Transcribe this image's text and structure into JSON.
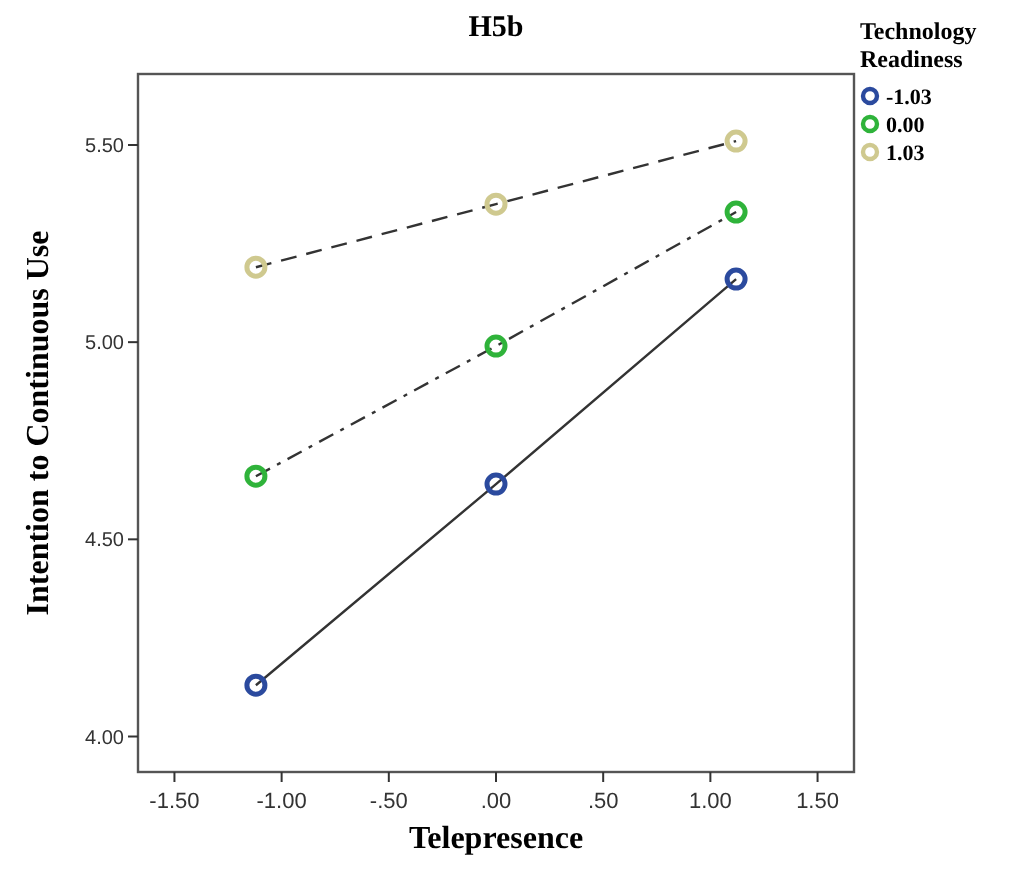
{
  "chart_data": {
    "type": "line",
    "title": "H5b",
    "xlabel": "Telepresence",
    "ylabel": "Intention to Continuous Use",
    "legend_title": "Technology Readiness",
    "legend": "top right",
    "marker": "circle",
    "x": [
      -1.12,
      0,
      1.12
    ],
    "xlim": [
      -1.67,
      1.67
    ],
    "xticks": [
      {
        "value": -1.5,
        "label": "-1.50"
      },
      {
        "value": -1,
        "label": "-1.00"
      },
      {
        "value": -0.5,
        "label": "-.50"
      },
      {
        "value": 0,
        "label": ".00"
      },
      {
        "value": 0.5,
        "label": ".50"
      },
      {
        "value": 1,
        "label": "1.00"
      },
      {
        "value": 1.5,
        "label": "1.50"
      }
    ],
    "ylim": [
      3.91,
      5.68
    ],
    "yticks": [
      {
        "value": 4,
        "label": "4.00"
      },
      {
        "value": 4.5,
        "label": "4.50"
      },
      {
        "value": 5,
        "label": "5.00"
      },
      {
        "value": 5.5,
        "label": "5.50"
      }
    ],
    "series": [
      {
        "name": "-1.03",
        "color": "#2b4a9e",
        "line_style": "solid",
        "values": [
          4.13,
          4.64,
          5.16
        ]
      },
      {
        "name": "0.00",
        "color": "#2fb33a",
        "line_style": "dashdot",
        "values": [
          4.66,
          4.99,
          5.33
        ]
      },
      {
        "name": "1.03",
        "color": "#cfc98f",
        "line_style": "dashed",
        "values": [
          5.19,
          5.35,
          5.51
        ]
      }
    ]
  }
}
